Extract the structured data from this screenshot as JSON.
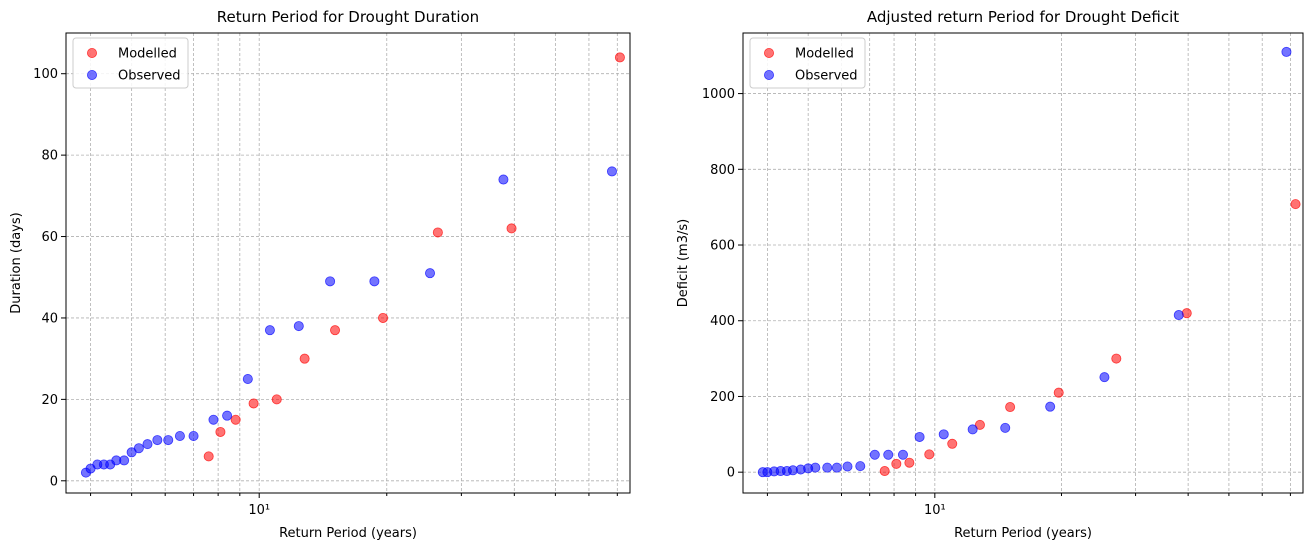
{
  "chart_data": [
    {
      "type": "scatter",
      "title": "Return Period for Drought Duration",
      "xlabel": "Return Period (years)",
      "ylabel": "Duration (days)",
      "xscale": "log",
      "xlim": [
        3.5,
        75
      ],
      "ylim": [
        -3,
        110
      ],
      "x_ticks": [
        10
      ],
      "x_tick_labels": [
        "10¹"
      ],
      "y_ticks": [
        0,
        20,
        40,
        60,
        80,
        100
      ],
      "y_tick_labels": [
        "0",
        "20",
        "40",
        "60",
        "80",
        "100"
      ],
      "grid": true,
      "legend": "top-left",
      "series": [
        {
          "name": "Modelled",
          "color": "#ff0000",
          "points": [
            [
              7.6,
              6
            ],
            [
              8.1,
              12
            ],
            [
              8.8,
              15
            ],
            [
              9.7,
              19
            ],
            [
              11.0,
              20
            ],
            [
              12.8,
              30
            ],
            [
              15.1,
              37
            ],
            [
              19.6,
              40
            ],
            [
              26.4,
              61
            ],
            [
              39.4,
              62
            ],
            [
              71.0,
              104
            ]
          ]
        },
        {
          "name": "Observed",
          "color": "#0000ff",
          "points": [
            [
              3.9,
              2
            ],
            [
              4.0,
              3
            ],
            [
              4.15,
              4
            ],
            [
              4.3,
              4
            ],
            [
              4.45,
              4
            ],
            [
              4.6,
              5
            ],
            [
              4.8,
              5
            ],
            [
              5.0,
              7
            ],
            [
              5.2,
              8
            ],
            [
              5.45,
              9
            ],
            [
              5.75,
              10
            ],
            [
              6.1,
              10
            ],
            [
              6.5,
              11
            ],
            [
              7.0,
              11
            ],
            [
              7.8,
              15
            ],
            [
              8.4,
              16
            ],
            [
              9.4,
              25
            ],
            [
              10.6,
              37
            ],
            [
              12.4,
              38
            ],
            [
              14.7,
              49
            ],
            [
              18.7,
              49
            ],
            [
              25.3,
              51
            ],
            [
              37.7,
              74
            ],
            [
              68.0,
              76
            ]
          ]
        }
      ]
    },
    {
      "type": "scatter",
      "title": "Adjusted return Period for Drought Deficit",
      "xlabel": "Return Period (years)",
      "ylabel": "Deficit (m3/s)",
      "xscale": "log",
      "xlim": [
        3.5,
        75
      ],
      "ylim": [
        -55,
        1160
      ],
      "x_ticks": [
        10
      ],
      "x_tick_labels": [
        "10¹"
      ],
      "y_ticks": [
        0,
        200,
        400,
        600,
        800,
        1000
      ],
      "y_tick_labels": [
        "0",
        "200",
        "400",
        "600",
        "800",
        "1000"
      ],
      "grid": true,
      "legend": "top-left",
      "series": [
        {
          "name": "Modelled",
          "color": "#ff0000",
          "points": [
            [
              7.6,
              3
            ],
            [
              8.1,
              22
            ],
            [
              8.7,
              25
            ],
            [
              9.7,
              47
            ],
            [
              11.0,
              75
            ],
            [
              12.8,
              125
            ],
            [
              15.1,
              172
            ],
            [
              19.7,
              210
            ],
            [
              27.0,
              300
            ],
            [
              39.7,
              420
            ],
            [
              72.0,
              708
            ]
          ]
        },
        {
          "name": "Observed",
          "color": "#0000ff",
          "points": [
            [
              3.9,
              0
            ],
            [
              4.0,
              0
            ],
            [
              4.15,
              2
            ],
            [
              4.3,
              3
            ],
            [
              4.45,
              3
            ],
            [
              4.6,
              5
            ],
            [
              4.8,
              7
            ],
            [
              5.0,
              10
            ],
            [
              5.2,
              12
            ],
            [
              5.55,
              12
            ],
            [
              5.85,
              12
            ],
            [
              6.2,
              15
            ],
            [
              6.65,
              16
            ],
            [
              7.2,
              46
            ],
            [
              7.75,
              46
            ],
            [
              8.4,
              46
            ],
            [
              9.2,
              93
            ],
            [
              10.5,
              100
            ],
            [
              12.3,
              113
            ],
            [
              14.7,
              117
            ],
            [
              18.8,
              173
            ],
            [
              25.3,
              251
            ],
            [
              38.0,
              415
            ],
            [
              68.5,
              1110
            ]
          ]
        }
      ]
    }
  ]
}
